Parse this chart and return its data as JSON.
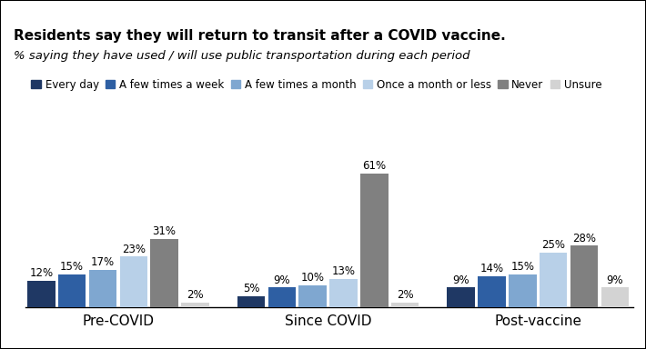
{
  "title": "Residents say they will return to transit after a COVID vaccine.",
  "subtitle": "% saying they have used / will use public transportation during each period",
  "groups": [
    "Pre-COVID",
    "Since COVID",
    "Post-vaccine"
  ],
  "categories": [
    "Every day",
    "A few times a week",
    "A few times a month",
    "Once a month or less",
    "Never",
    "Unsure"
  ],
  "colors": [
    "#1f3864",
    "#2e5fa3",
    "#7fa7d0",
    "#b8d0e8",
    "#808080",
    "#d3d3d3"
  ],
  "values": {
    "Pre-COVID": [
      12,
      15,
      17,
      23,
      31,
      2
    ],
    "Since COVID": [
      5,
      9,
      10,
      13,
      61,
      2
    ],
    "Post-vaccine": [
      9,
      14,
      15,
      25,
      28,
      9
    ]
  },
  "ylim": [
    0,
    70
  ],
  "bar_width": 0.11,
  "group_centers": [
    0.38,
    1.13,
    1.88
  ],
  "label_fontsize": 8.5,
  "legend_fontsize": 8.5,
  "title_fontsize": 11,
  "subtitle_fontsize": 9.5,
  "group_label_fontsize": 11,
  "background_color": "#ffffff",
  "border_color": "#000000"
}
